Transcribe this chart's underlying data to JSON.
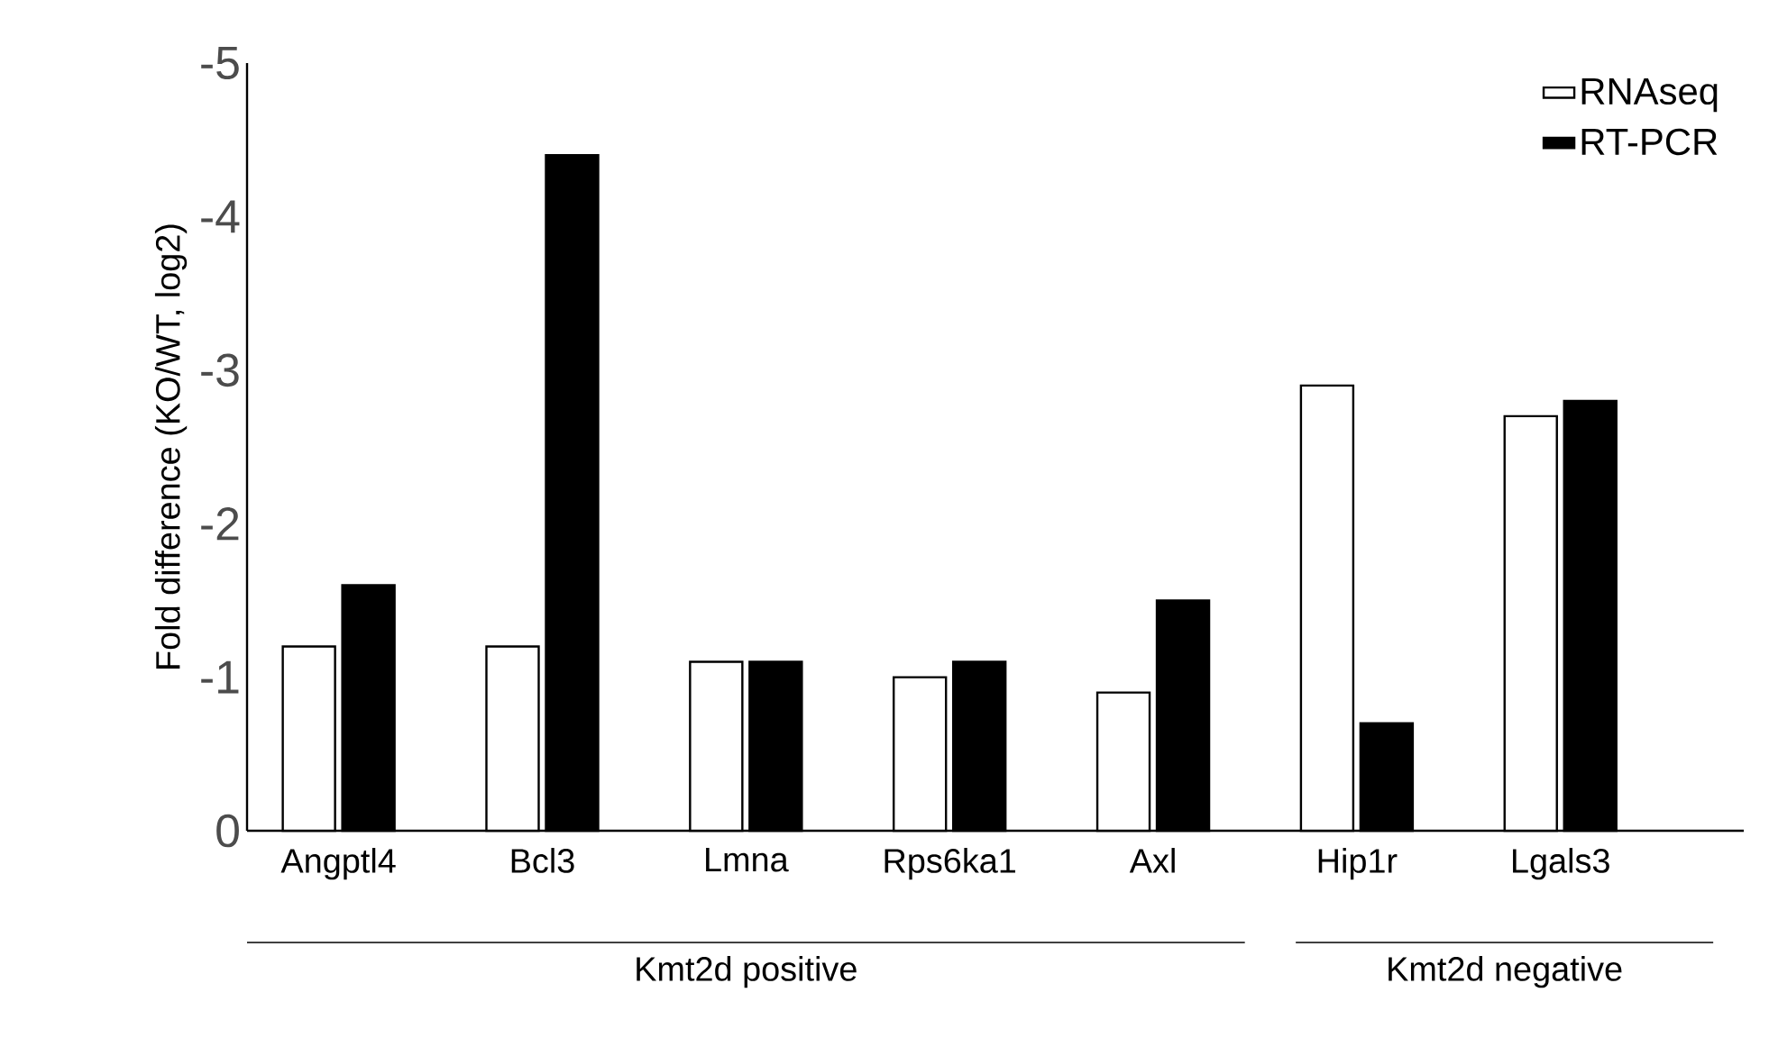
{
  "chart_data": {
    "type": "bar",
    "ylabel": "Fold difference (KO/WT, log2)",
    "categories": [
      "Angptl4",
      "Bcl3",
      "Lmna",
      "Rps6ka1",
      "Axl",
      "Hip1r",
      "Lgals3"
    ],
    "series": [
      {
        "name": "RNAseq",
        "color": "#ffffff",
        "values": [
          -1.2,
          -1.2,
          -1.1,
          -1.0,
          -0.9,
          -2.9,
          -2.7
        ]
      },
      {
        "name": "RT-PCR",
        "color": "#000000",
        "values": [
          -1.6,
          -4.4,
          -1.1,
          -1.1,
          -1.5,
          -0.7,
          -2.8
        ]
      }
    ],
    "ylim": [
      0,
      -5
    ],
    "yticks": [
      0,
      -1,
      -2,
      -3,
      -4,
      -5
    ],
    "legend": "top right",
    "grid": false,
    "annotations": [
      "Kmt2d positive",
      "Kmt2d negative"
    ]
  }
}
